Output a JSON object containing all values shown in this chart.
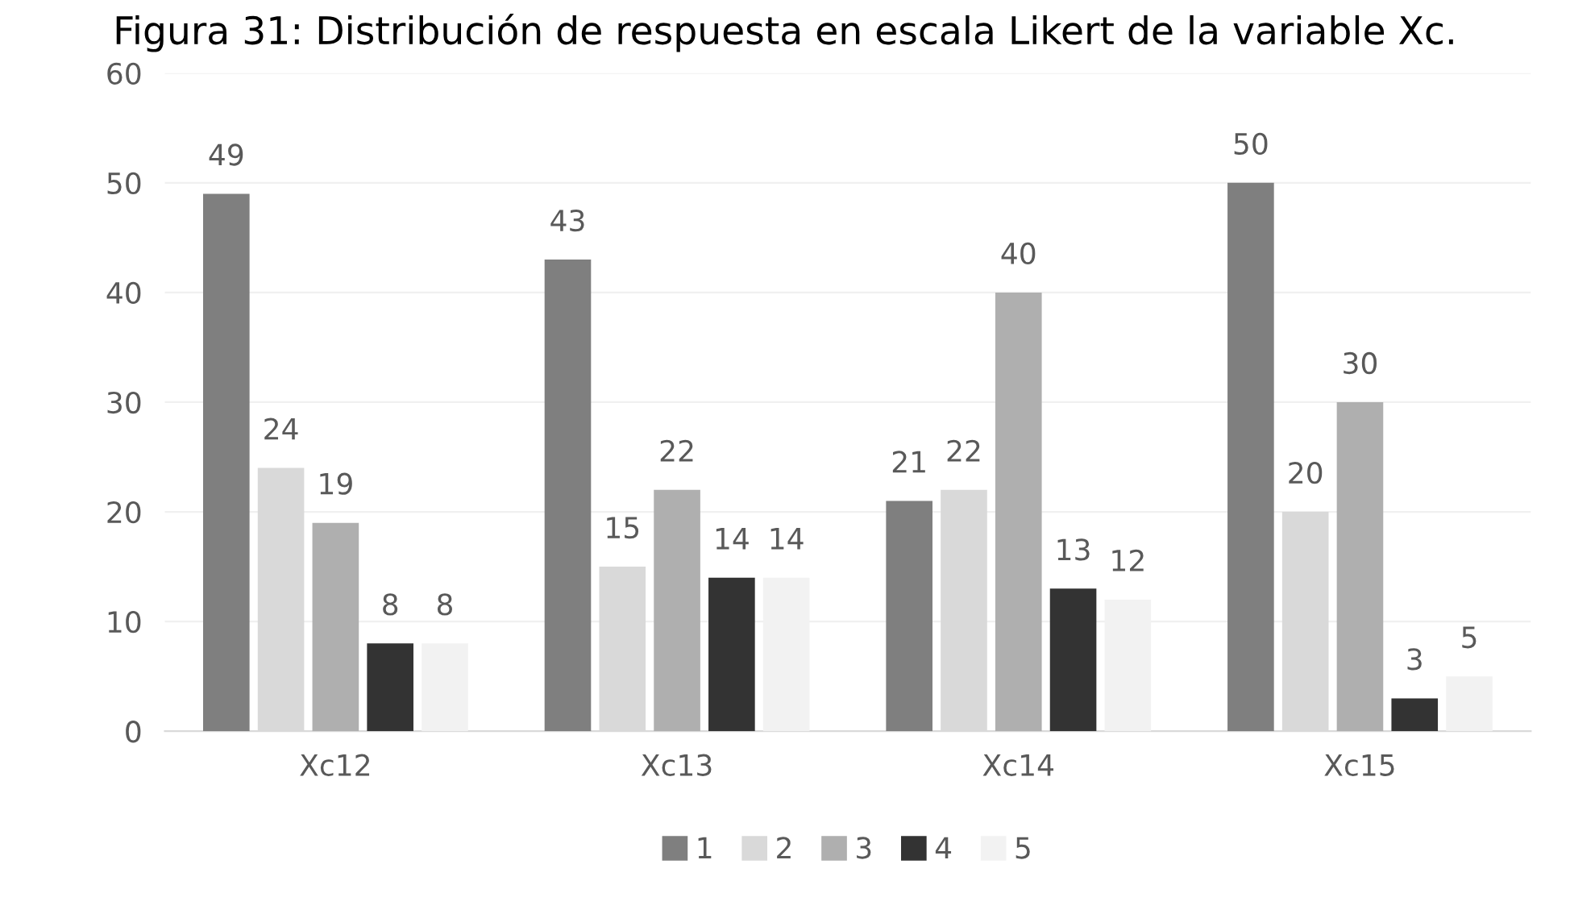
{
  "chart_data": {
    "type": "bar",
    "title": "Figura 31: Distribución de respuesta en escala Likert de la variable Xc.",
    "categories": [
      "Xc12",
      "Xc13",
      "Xc14",
      "Xc15"
    ],
    "series": [
      {
        "name": "1",
        "color": "#7f7f7f",
        "values": [
          49,
          43,
          21,
          50
        ]
      },
      {
        "name": "2",
        "color": "#d9d9d9",
        "values": [
          24,
          15,
          22,
          20
        ]
      },
      {
        "name": "3",
        "color": "#afafaf",
        "values": [
          19,
          22,
          40,
          30
        ]
      },
      {
        "name": "4",
        "color": "#333333",
        "values": [
          8,
          14,
          13,
          3
        ]
      },
      {
        "name": "5",
        "color": "#f2f2f2",
        "values": [
          8,
          14,
          12,
          5
        ]
      }
    ],
    "ylim": [
      0,
      60
    ],
    "yticks": [
      0,
      10,
      20,
      30,
      40,
      50,
      60
    ],
    "grid": "y",
    "legend": "bottom",
    "data_labels": true
  }
}
